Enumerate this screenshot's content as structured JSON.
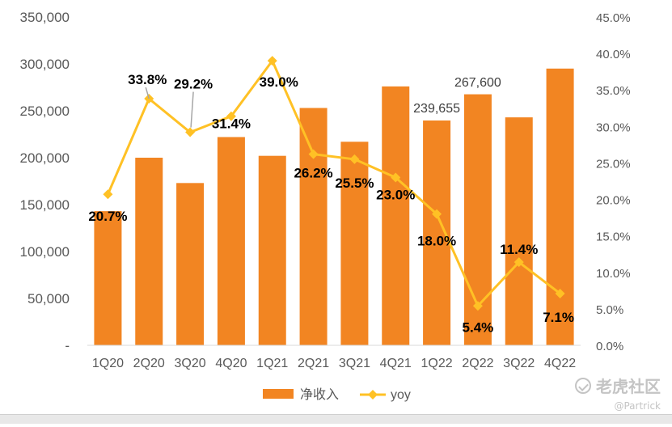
{
  "chart_data": {
    "type": "bar+line",
    "categories": [
      "1Q20",
      "2Q20",
      "3Q20",
      "4Q20",
      "1Q21",
      "2Q21",
      "3Q21",
      "4Q21",
      "1Q22",
      "2Q22",
      "3Q22",
      "4Q22"
    ],
    "series": [
      {
        "name": "净收入",
        "type": "bar",
        "axis": "left",
        "color": "#F28522",
        "values": [
          143000,
          200000,
          173000,
          222000,
          202000,
          253000,
          217000,
          276000,
          239655,
          267600,
          243000,
          295000
        ]
      },
      {
        "name": "yoy",
        "type": "line",
        "axis": "right",
        "color": "#FFC125",
        "values": [
          20.7,
          33.8,
          29.2,
          31.4,
          39.0,
          26.2,
          25.5,
          23.0,
          18.0,
          5.4,
          11.4,
          7.1
        ],
        "labels": [
          "20.7%",
          "33.8%",
          "29.2%",
          "31.4%",
          "39.0%",
          "26.2%",
          "25.5%",
          "23.0%",
          "18.0%",
          "5.4%",
          "11.4%",
          "7.1%"
        ]
      }
    ],
    "bar_labels": [
      {
        "index": 8,
        "text": "239,655"
      },
      {
        "index": 9,
        "text": "267,600"
      }
    ],
    "left_axis": {
      "min": 0,
      "max": 350000,
      "step": 50000,
      "tick_labels": [
        "-",
        "50,000",
        "100,000",
        "150,000",
        "200,000",
        "250,000",
        "300,000",
        "350,000"
      ]
    },
    "right_axis": {
      "min": 0,
      "max": 45,
      "step": 5,
      "tick_labels": [
        "0.0%",
        "5.0%",
        "10.0%",
        "15.0%",
        "20.0%",
        "25.0%",
        "30.0%",
        "35.0%",
        "40.0%",
        "45.0%"
      ]
    },
    "legend": {
      "position": "bottom",
      "items": [
        "净收入",
        "yoy"
      ]
    },
    "grid": false
  },
  "watermark": {
    "brand": "老虎社区",
    "handle": "@Partrick"
  },
  "colors": {
    "bar": "#F28522",
    "line": "#FFC125",
    "axis_text": "#595959",
    "label_text": "#000000",
    "leader": "#a6a6a6"
  }
}
